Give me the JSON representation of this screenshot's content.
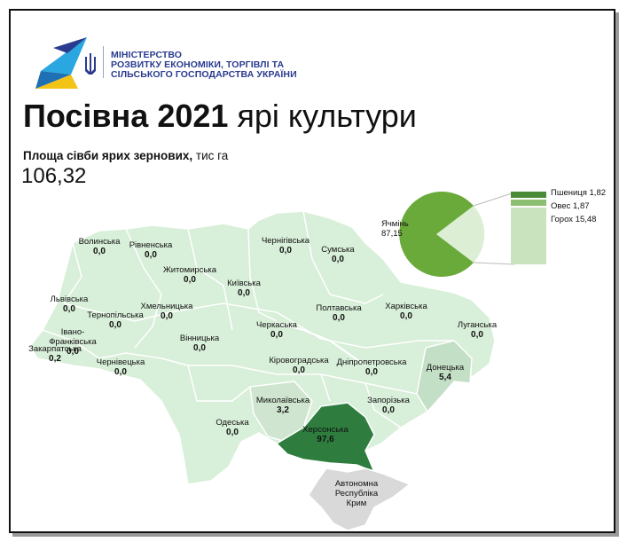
{
  "header": {
    "ministry_lines": [
      "МІНІСТЕРСТВО",
      "РОЗВИТКУ ЕКОНОМІКИ, ТОРГІВЛІ ТА",
      "СІЛЬСЬКОГО ГОСПОДАРСТВА УКРАЇНИ"
    ],
    "logo_icon": "ministry-logo-trident-icon"
  },
  "title": {
    "bold": "Посівна 2021",
    "rest": " ярі культури"
  },
  "subtitle": {
    "bold": "Площа сівби ярих зернових,",
    "rest": " тис га"
  },
  "total": "106,32",
  "regions": [
    {
      "name": "Волинська",
      "value": "0,0"
    },
    {
      "name": "Рівненська",
      "value": "0,0"
    },
    {
      "name": "Житомирська",
      "value": "0,0"
    },
    {
      "name": "Чернігівська",
      "value": "0,0"
    },
    {
      "name": "Сумська",
      "value": "0,0"
    },
    {
      "name": "Київська",
      "value": "0,0"
    },
    {
      "name": "Львівська",
      "value": "0,0"
    },
    {
      "name": "Хмельницька",
      "value": "0,0"
    },
    {
      "name": "Тернопільська",
      "value": "0,0"
    },
    {
      "name": "Полтавська",
      "value": "0,0"
    },
    {
      "name": "Харківська",
      "value": "0,0"
    },
    {
      "name": "Луганська",
      "value": "0,0"
    },
    {
      "name": "Черкаська",
      "value": "0,0"
    },
    {
      "name": "Вінницька",
      "value": "0,0"
    },
    {
      "name": "Івано-Франківська",
      "value": "0,0"
    },
    {
      "name": "Закарпатська",
      "value": "0,2"
    },
    {
      "name": "Чернівецька",
      "value": "0,0"
    },
    {
      "name": "Кіровоградська",
      "value": "0,0"
    },
    {
      "name": "Дніпропетровська",
      "value": "0,0"
    },
    {
      "name": "Донецька",
      "value": "5,4"
    },
    {
      "name": "Миколаївська",
      "value": "3,2"
    },
    {
      "name": "Запорізька",
      "value": "0,0"
    },
    {
      "name": "Одеська",
      "value": "0,0"
    },
    {
      "name": "Херсонська",
      "value": "97,6"
    },
    {
      "name": "Автономна Республіка Крим",
      "value": ""
    }
  ],
  "chart_data": {
    "type": "pie",
    "slices": [
      {
        "label": "Ячмінь",
        "value": 87.15,
        "display": "87,15",
        "color": "#6aaa3a"
      },
      {
        "label": "Пшениця",
        "value": 1.82,
        "display": "1,82",
        "color": "#4a8b3a"
      },
      {
        "label": "Овес",
        "value": 1.87,
        "display": "1,87",
        "color": "#8cc070"
      },
      {
        "label": "Горох",
        "value": 15.48,
        "display": "15,48",
        "color": "#c9e3bf"
      }
    ],
    "other_slice_color": "#dcefd5"
  },
  "colors": {
    "map_base": "#d8efd9",
    "map_border": "#ffffff",
    "kherson": "#2e7d3f",
    "mykolaiv": "#cfe5cf",
    "donetsk": "#c3dfc5",
    "crimea": "#d9d9d9",
    "navy": "#2a3b8f",
    "yellow": "#f3c316",
    "cyan": "#2aa7e0"
  }
}
